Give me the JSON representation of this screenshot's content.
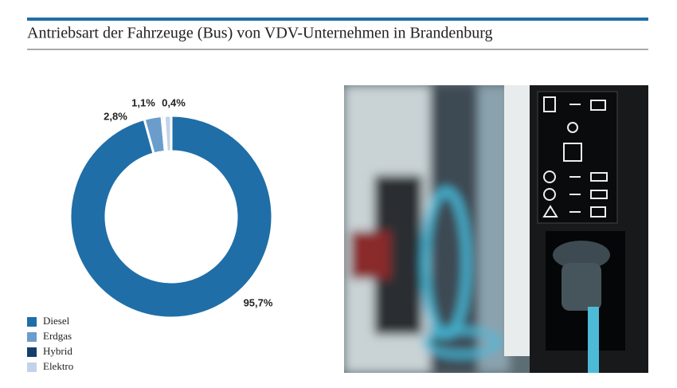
{
  "chart_data": {
    "type": "donut",
    "title": "Antriebsart der Fahrzeuge (Bus) von VDV-Unternehmen in Brandenburg",
    "categories": [
      "Diesel",
      "Erdgas",
      "Hybrid",
      "Elektro"
    ],
    "series": [
      {
        "values": [
          95.7,
          2.8,
          0.4,
          1.1
        ],
        "value_labels": [
          "95,7%",
          "2,8%",
          "0,4%",
          "1,1%"
        ],
        "colors": [
          "#1f6ea7",
          "#6a9dcb",
          "#143f6b",
          "#c2d3e9"
        ]
      }
    ]
  }
}
